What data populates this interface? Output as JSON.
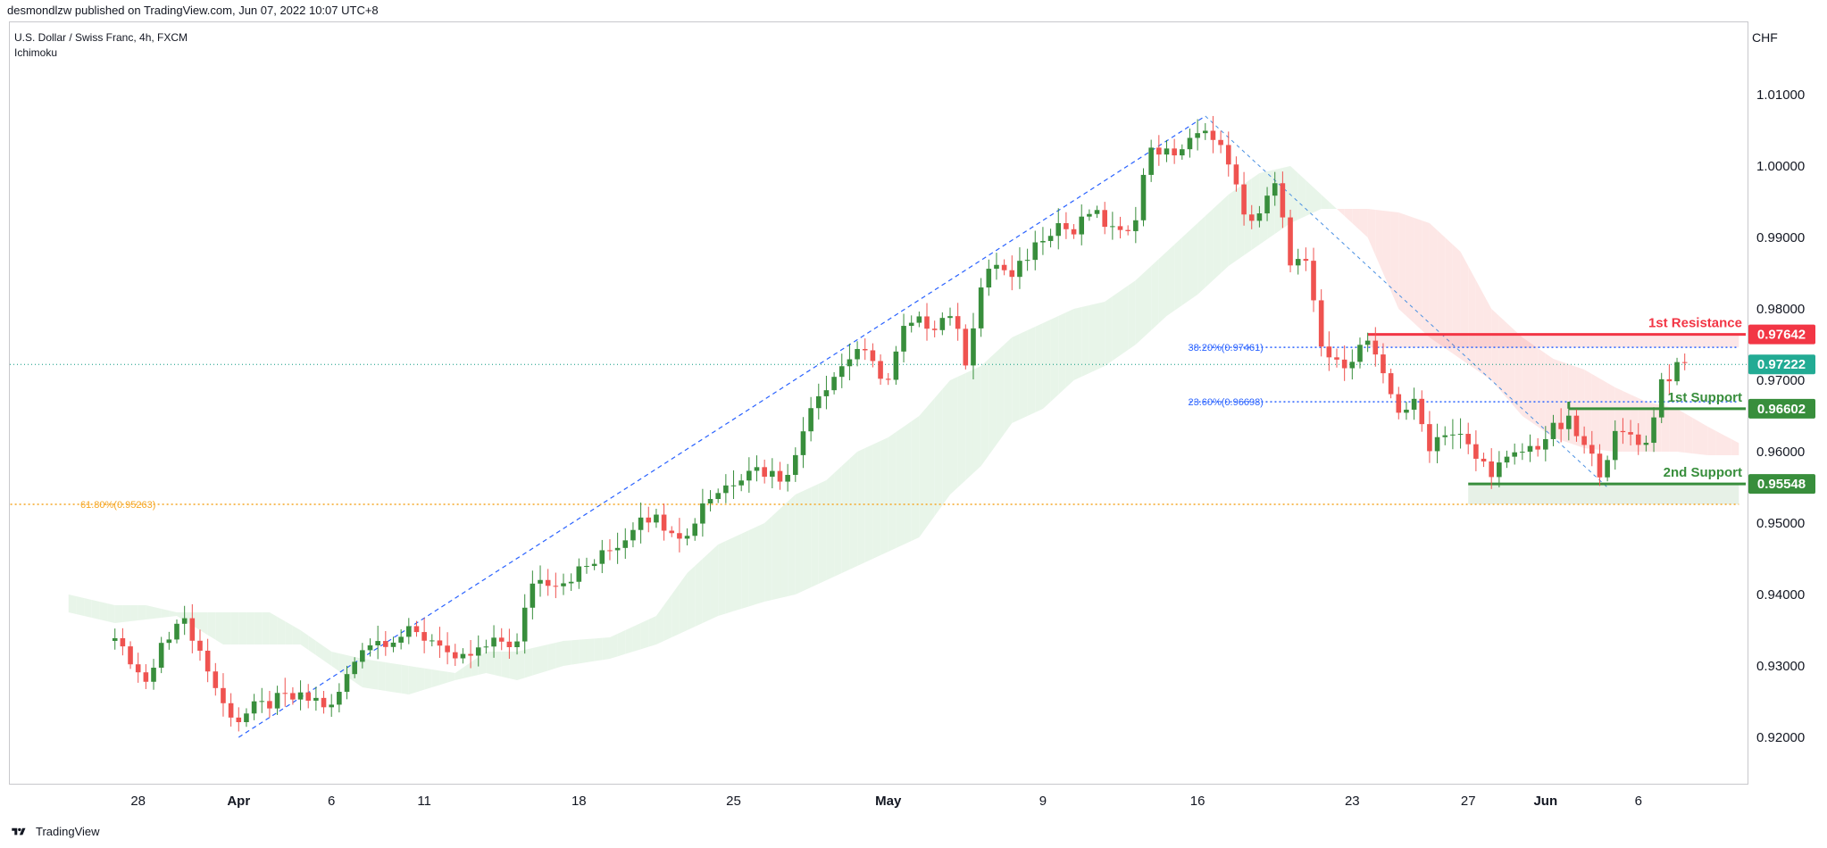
{
  "header": {
    "publisher_text": "desmondlzw published on TradingView.com, Jun 07, 2022 10:07 UTC+8"
  },
  "legend": {
    "symbol": "U.S. Dollar / Swiss Franc, 4h, FXCM",
    "indicator": "Ichimoku"
  },
  "axis": {
    "currency": "CHF"
  },
  "footer": {
    "brand": "TradingView"
  },
  "chart_data": {
    "type": "candlestick",
    "title": "U.S. Dollar / Swiss Franc, 4h, FXCM",
    "ylim": [
      0.9117,
      1.0175
    ],
    "y_ticks": [
      "1.01000",
      "1.00000",
      "0.99000",
      "0.98000",
      "0.97000",
      "0.96000",
      "0.95000",
      "0.94000",
      "0.93000",
      "0.92000"
    ],
    "x_ticks": [
      {
        "label": "28",
        "bold": false,
        "idx": -5
      },
      {
        "label": "Apr",
        "bold": true,
        "idx": 8
      },
      {
        "label": "6",
        "bold": false,
        "idx": 20
      },
      {
        "label": "11",
        "bold": false,
        "idx": 32
      },
      {
        "label": "18",
        "bold": false,
        "idx": 52
      },
      {
        "label": "25",
        "bold": false,
        "idx": 72
      },
      {
        "label": "May",
        "bold": true,
        "idx": 92
      },
      {
        "label": "9",
        "bold": false,
        "idx": 112
      },
      {
        "label": "16",
        "bold": false,
        "idx": 132
      },
      {
        "label": "23",
        "bold": false,
        "idx": 152
      },
      {
        "label": "27",
        "bold": false,
        "idx": 167
      },
      {
        "label": "Jun",
        "bold": true,
        "idx": 177
      },
      {
        "label": "6",
        "bold": false,
        "idx": 189
      }
    ],
    "price_anchors": [
      [
        -8,
        0.9335
      ],
      [
        -4,
        0.9275
      ],
      [
        0,
        0.937
      ],
      [
        2,
        0.9345
      ],
      [
        6,
        0.9245
      ],
      [
        8,
        0.9225
      ],
      [
        10,
        0.924
      ],
      [
        14,
        0.9255
      ],
      [
        18,
        0.9252
      ],
      [
        20,
        0.924
      ],
      [
        22,
        0.9285
      ],
      [
        24,
        0.933
      ],
      [
        30,
        0.9345
      ],
      [
        34,
        0.9335
      ],
      [
        36,
        0.93
      ],
      [
        38,
        0.9315
      ],
      [
        42,
        0.9335
      ],
      [
        44,
        0.933
      ],
      [
        46,
        0.942
      ],
      [
        50,
        0.942
      ],
      [
        54,
        0.9445
      ],
      [
        58,
        0.948
      ],
      [
        60,
        0.9515
      ],
      [
        64,
        0.9495
      ],
      [
        66,
        0.948
      ],
      [
        68,
        0.953
      ],
      [
        72,
        0.956
      ],
      [
        74,
        0.958
      ],
      [
        78,
        0.9565
      ],
      [
        80,
        0.959
      ],
      [
        82,
        0.967
      ],
      [
        86,
        0.972
      ],
      [
        88,
        0.9745
      ],
      [
        90,
        0.972
      ],
      [
        92,
        0.97
      ],
      [
        94,
        0.977
      ],
      [
        96,
        0.978
      ],
      [
        98,
        0.978
      ],
      [
        100,
        0.9795
      ],
      [
        102,
        0.973
      ],
      [
        104,
        0.983
      ],
      [
        106,
        0.9865
      ],
      [
        108,
        0.984
      ],
      [
        110,
        0.9875
      ],
      [
        112,
        0.9905
      ],
      [
        114,
        0.992
      ],
      [
        116,
        0.9905
      ],
      [
        118,
        0.9935
      ],
      [
        120,
        0.992
      ],
      [
        122,
        0.99
      ],
      [
        124,
        0.9935
      ],
      [
        126,
        1.003
      ],
      [
        128,
        1.0015
      ],
      [
        130,
        1.0025
      ],
      [
        132,
        1.004
      ],
      [
        133,
        1.006
      ],
      [
        134,
        1.0035
      ],
      [
        136,
        1.001
      ],
      [
        138,
        0.9925
      ],
      [
        140,
        0.9935
      ],
      [
        142,
        0.997
      ],
      [
        144,
        0.987
      ],
      [
        146,
        0.986
      ],
      [
        148,
        0.9745
      ],
      [
        150,
        0.972
      ],
      [
        152,
        0.9735
      ],
      [
        154,
        0.9755
      ],
      [
        156,
        0.97
      ],
      [
        158,
        0.966
      ],
      [
        160,
        0.9665
      ],
      [
        162,
        0.961
      ],
      [
        164,
        0.963
      ],
      [
        166,
        0.962
      ],
      [
        168,
        0.959
      ],
      [
        170,
        0.9575
      ],
      [
        172,
        0.9585
      ],
      [
        174,
        0.96
      ],
      [
        176,
        0.961
      ],
      [
        178,
        0.963
      ],
      [
        180,
        0.964
      ],
      [
        182,
        0.9605
      ],
      [
        184,
        0.9575
      ],
      [
        186,
        0.962
      ],
      [
        188,
        0.9625
      ],
      [
        190,
        0.961
      ],
      [
        192,
        0.97
      ],
      [
        194,
        0.9715
      ],
      [
        195,
        0.9722
      ]
    ],
    "ichimoku_cloud": [
      [
        -14,
        0.94,
        0.9375
      ],
      [
        -8,
        0.9385,
        0.936
      ],
      [
        -4,
        0.9385,
        0.9365
      ],
      [
        0,
        0.9375,
        0.937
      ],
      [
        6,
        0.9375,
        0.933
      ],
      [
        12,
        0.9375,
        0.933
      ],
      [
        16,
        0.935,
        0.933
      ],
      [
        20,
        0.932,
        0.93
      ],
      [
        24,
        0.931,
        0.927
      ],
      [
        30,
        0.93,
        0.926
      ],
      [
        36,
        0.929,
        0.928
      ],
      [
        40,
        0.932,
        0.929
      ],
      [
        44,
        0.932,
        0.928
      ],
      [
        50,
        0.9335,
        0.93
      ],
      [
        56,
        0.934,
        0.931
      ],
      [
        62,
        0.937,
        0.933
      ],
      [
        66,
        0.943,
        0.935
      ],
      [
        70,
        0.947,
        0.937
      ],
      [
        76,
        0.95,
        0.939
      ],
      [
        80,
        0.954,
        0.94
      ],
      [
        84,
        0.956,
        0.942
      ],
      [
        88,
        0.96,
        0.944
      ],
      [
        92,
        0.962,
        0.946
      ],
      [
        96,
        0.965,
        0.948
      ],
      [
        100,
        0.97,
        0.954
      ],
      [
        104,
        0.972,
        0.958
      ],
      [
        108,
        0.976,
        0.964
      ],
      [
        112,
        0.978,
        0.966
      ],
      [
        116,
        0.98,
        0.97
      ],
      [
        120,
        0.981,
        0.972
      ],
      [
        124,
        0.984,
        0.975
      ],
      [
        128,
        0.988,
        0.979
      ],
      [
        132,
        0.992,
        0.982
      ],
      [
        136,
        0.996,
        0.986
      ],
      [
        140,
        0.999,
        0.989
      ],
      [
        144,
        1.0,
        0.992
      ],
      [
        148,
        0.996,
        0.994
      ],
      [
        150,
        0.994,
        0.994
      ],
      [
        154,
        0.99,
        0.994
      ],
      [
        158,
        0.98,
        0.9935
      ],
      [
        162,
        0.976,
        0.992
      ],
      [
        166,
        0.973,
        0.988
      ],
      [
        170,
        0.97,
        0.98
      ],
      [
        174,
        0.965,
        0.976
      ],
      [
        178,
        0.962,
        0.973
      ],
      [
        182,
        0.9605,
        0.9715
      ],
      [
        186,
        0.96,
        0.969
      ],
      [
        190,
        0.96,
        0.967
      ],
      [
        194,
        0.96,
        0.966
      ],
      [
        198,
        0.9595,
        0.9635
      ],
      [
        202,
        0.9595,
        0.9612
      ]
    ],
    "rising_trendline": {
      "from": [
        8,
        0.92
      ],
      "to": [
        133,
        1.007
      ]
    },
    "falling_trendline": {
      "from": [
        133,
        1.007
      ],
      "to": [
        185,
        0.955
      ]
    },
    "fib_levels": [
      {
        "label": "38.20%(0.97461)",
        "price": 0.97461,
        "from_idx": 131,
        "to_idx": 202,
        "color": "#2962ff"
      },
      {
        "label": "23.60%(0.96698)",
        "price": 0.96698,
        "from_idx": 131,
        "to_idx": 202,
        "color": "#2962ff"
      },
      {
        "label": "61.80%(0.95263)",
        "price": 0.95263,
        "from_idx": -40,
        "to_idx": 202,
        "color": "#f5a623"
      }
    ],
    "current_price_line": {
      "price": 0.97222,
      "color": "#089981"
    },
    "zones": [
      {
        "label": "1st Resistance",
        "price": 0.97642,
        "from_idx": 154,
        "color": "#f23645",
        "tag_color": "#f23645"
      },
      {
        "label": "1st Support",
        "price": 0.96602,
        "from_idx": 180,
        "color": "#388e3c",
        "tag_color": "#388e3c"
      },
      {
        "label": "2nd Support",
        "price": 0.95548,
        "from_idx": 167,
        "color": "#388e3c",
        "tag_color": "#388e3c"
      }
    ],
    "resistance_box": {
      "from_idx": 154,
      "to_idx": 202,
      "top": 0.97642,
      "bottom": 0.97461,
      "color": "#f23645"
    },
    "support_box": {
      "from_idx": 167,
      "to_idx": 202,
      "top": 0.95548,
      "bottom": 0.95263,
      "color": "#388e3c"
    },
    "support_riser": {
      "at_idx": 180,
      "from": 0.96602,
      "to": 0.967
    },
    "price_tags": [
      {
        "text": "0.97642",
        "price": 0.97642,
        "color": "#f23645"
      },
      {
        "text": "0.97222",
        "price": 0.97222,
        "color": "#22ab94"
      },
      {
        "text": "0.96602",
        "price": 0.96602,
        "color": "#388e3c"
      },
      {
        "text": "0.95548",
        "price": 0.95548,
        "color": "#388e3c"
      }
    ],
    "colors": {
      "up": "#388e3c",
      "down": "#ef5350",
      "cloud_up": "#e8f5e9",
      "cloud_down": "#fde7e6"
    }
  }
}
